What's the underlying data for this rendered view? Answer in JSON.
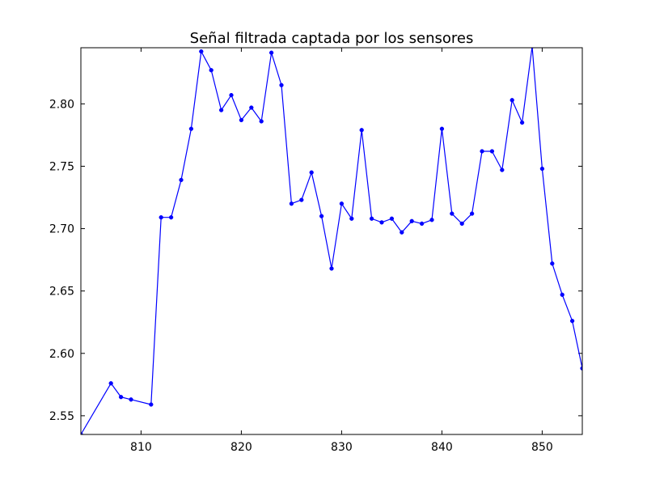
{
  "chart_data": {
    "type": "line",
    "title": "Señal filtrada captada por los sensores",
    "xlabel": "",
    "ylabel": "",
    "xlim": [
      804,
      854
    ],
    "ylim": [
      2.535,
      2.845
    ],
    "x_ticks": [
      810,
      820,
      830,
      840,
      850
    ],
    "x_tick_labels": [
      "810",
      "820",
      "830",
      "840",
      "850"
    ],
    "y_ticks": [
      2.55,
      2.6,
      2.65,
      2.7,
      2.75,
      2.8
    ],
    "y_tick_labels": [
      "2.55",
      "2.60",
      "2.65",
      "2.70",
      "2.75",
      "2.80"
    ],
    "grid": false,
    "legend": "none",
    "series": [
      {
        "color": "#0000ff",
        "marker": "circle",
        "x": [
          804,
          807,
          808,
          809,
          811,
          812,
          813,
          814,
          815,
          816,
          817,
          818,
          819,
          820,
          821,
          822,
          823,
          824,
          825,
          826,
          827,
          828,
          829,
          830,
          831,
          832,
          833,
          834,
          835,
          836,
          837,
          838,
          839,
          840,
          841,
          842,
          843,
          844,
          845,
          846,
          847,
          848,
          849,
          850,
          851,
          852,
          853,
          854
        ],
        "y": [
          2.535,
          2.576,
          2.565,
          2.563,
          2.559,
          2.709,
          2.709,
          2.739,
          2.78,
          2.842,
          2.827,
          2.795,
          2.807,
          2.787,
          2.797,
          2.786,
          2.841,
          2.815,
          2.72,
          2.723,
          2.745,
          2.71,
          2.668,
          2.72,
          2.708,
          2.779,
          2.708,
          2.705,
          2.708,
          2.697,
          2.706,
          2.704,
          2.707,
          2.78,
          2.712,
          2.704,
          2.712,
          2.762,
          2.762,
          2.747,
          2.803,
          2.785,
          2.846,
          2.748,
          2.672,
          2.647,
          2.626,
          2.588
        ]
      }
    ]
  }
}
